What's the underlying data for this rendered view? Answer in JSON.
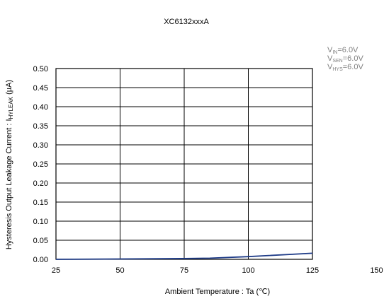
{
  "chart_data": {
    "type": "line",
    "title": "XC6132xxxA",
    "xlabel": "Ambient Temperature : Ta (℃)",
    "ylabel": "Hysteresis Output Leakage Current : I",
    "ylabel_subscript": "HYLEAK",
    "ylabel_unit": " (µA)",
    "xlim": [
      25,
      150
    ],
    "ylim": [
      0,
      0.5
    ],
    "x_ticks": [
      25,
      50,
      75,
      100,
      125,
      150
    ],
    "x_tick_labels": [
      "25",
      "50",
      "75",
      "100",
      "125",
      "150"
    ],
    "y_ticks": [
      0,
      0.05,
      0.1,
      0.15,
      0.2,
      0.25,
      0.3,
      0.35,
      0.4,
      0.45,
      0.5
    ],
    "y_tick_labels": [
      "0.00",
      "0.05",
      "0.10",
      "0.15",
      "0.20",
      "0.25",
      "0.30",
      "0.35",
      "0.40",
      "0.45",
      "0.50"
    ],
    "grid": true,
    "series": [
      {
        "color": "#1f3c88",
        "x": [
          25,
          50,
          75,
          85,
          100,
          125
        ],
        "y": [
          0.0,
          0.001,
          0.002,
          0.003,
          0.007,
          0.016
        ]
      }
    ],
    "annotations": [
      {
        "main": "V",
        "sub": "IN",
        "rest": "=6.0V"
      },
      {
        "main": "V",
        "sub": "SEN",
        "rest": "=6.0V"
      },
      {
        "main": "V",
        "sub": "HYS",
        "rest": "=6.0V"
      }
    ],
    "annotation_color": "#7f7f7f"
  }
}
